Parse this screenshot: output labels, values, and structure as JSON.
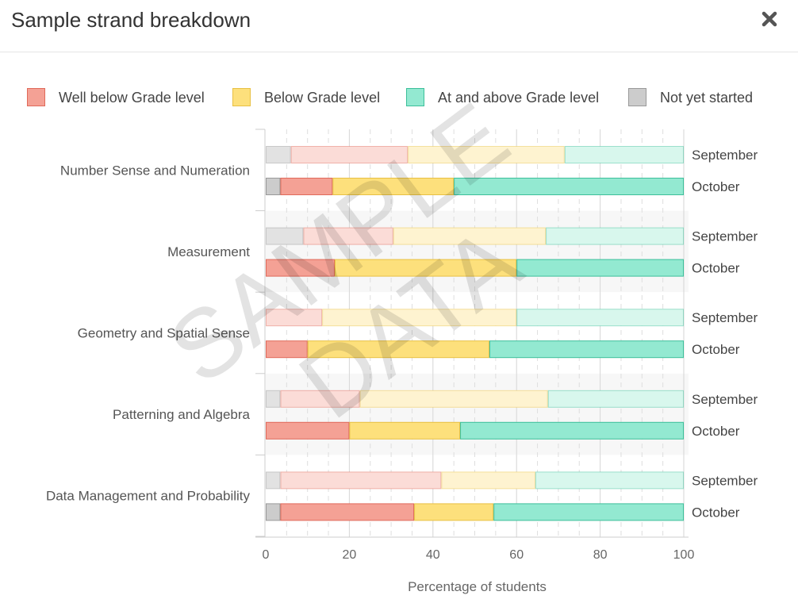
{
  "modal": {
    "title": "Sample strand breakdown",
    "close_icon": "close-icon"
  },
  "watermark": [
    "SAMPLE",
    "DATA"
  ],
  "colors": {
    "well_below": "#f4a195",
    "well_below_light": "#fbdcd7",
    "well_below_border": "#e06a5a",
    "below": "#fde07c",
    "below_light": "#fef3d0",
    "below_border": "#e8c044",
    "above": "#93e9d1",
    "above_light": "#d8f7ed",
    "above_border": "#3cbf9a",
    "not_started": "#cccccc",
    "not_started_light": "#e2e2e2",
    "not_started_border": "#999999"
  },
  "chart_data": {
    "type": "bar",
    "orientation": "horizontal",
    "stacked": true,
    "xlabel": "Percentage of students",
    "xlim": [
      0,
      100
    ],
    "xticks": [
      0,
      20,
      40,
      60,
      80,
      100
    ],
    "legend_position": "top",
    "legend": [
      {
        "key": "well_below",
        "label": "Well below Grade level"
      },
      {
        "key": "below",
        "label": "Below Grade level"
      },
      {
        "key": "above",
        "label": "At and above Grade level"
      },
      {
        "key": "not_started",
        "label": "Not yet started"
      }
    ],
    "stack_order": [
      "not_started",
      "well_below",
      "below",
      "above"
    ],
    "categories": [
      {
        "label": "Number Sense and Numeration",
        "bars": [
          {
            "label": "September",
            "faded": true,
            "values": {
              "not_started": 6,
              "well_below": 28,
              "below": 37.5,
              "above": 28.5
            }
          },
          {
            "label": "October",
            "faded": false,
            "values": {
              "not_started": 3.5,
              "well_below": 12.5,
              "below": 29,
              "above": 55
            }
          }
        ]
      },
      {
        "label": "Measurement",
        "bars": [
          {
            "label": "September",
            "faded": true,
            "values": {
              "not_started": 9,
              "well_below": 21.5,
              "below": 36.5,
              "above": 33
            }
          },
          {
            "label": "October",
            "faded": false,
            "values": {
              "not_started": 0,
              "well_below": 16.5,
              "below": 43.5,
              "above": 40
            }
          }
        ]
      },
      {
        "label": "Geometry and Spatial Sense",
        "bars": [
          {
            "label": "September",
            "faded": true,
            "values": {
              "not_started": 0,
              "well_below": 13.5,
              "below": 46.5,
              "above": 40
            }
          },
          {
            "label": "October",
            "faded": false,
            "values": {
              "not_started": 0,
              "well_below": 10,
              "below": 43.5,
              "above": 46.5
            }
          }
        ]
      },
      {
        "label": "Patterning and Algebra",
        "bars": [
          {
            "label": "September",
            "faded": true,
            "values": {
              "not_started": 3.5,
              "well_below": 19,
              "below": 45,
              "above": 32.5
            }
          },
          {
            "label": "October",
            "faded": false,
            "values": {
              "not_started": 0,
              "well_below": 20,
              "below": 26.5,
              "above": 53.5
            }
          }
        ]
      },
      {
        "label": "Data Management and Probability",
        "bars": [
          {
            "label": "September",
            "faded": true,
            "values": {
              "not_started": 3.5,
              "well_below": 38.5,
              "below": 22.5,
              "above": 35.5
            }
          },
          {
            "label": "October",
            "faded": false,
            "values": {
              "not_started": 3.5,
              "well_below": 32,
              "below": 19,
              "above": 45.5
            }
          }
        ]
      }
    ]
  }
}
